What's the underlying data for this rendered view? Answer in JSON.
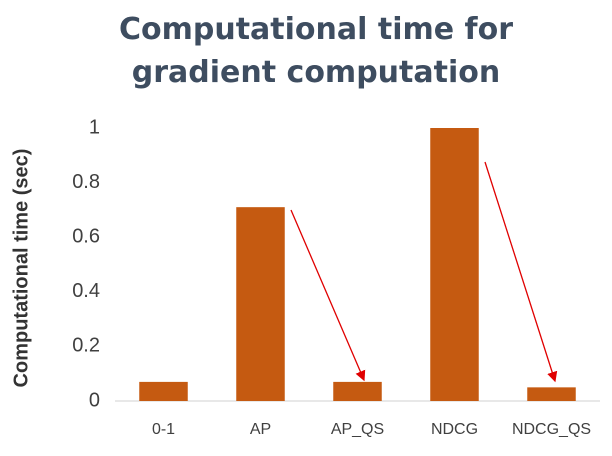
{
  "chart_data": {
    "type": "bar",
    "title": "Computational time for gradient computation",
    "y_label": "Computational time  (sec)",
    "categories": [
      "0-1",
      "AP",
      "AP_QS",
      "NDCG",
      "NDCG_QS"
    ],
    "values": [
      0.07,
      0.71,
      0.07,
      1,
      0.05
    ],
    "color": "#c55a11",
    "ylim": [
      0,
      1
    ],
    "yticks": [
      0,
      0.2,
      0.4,
      0.6,
      0.8,
      1
    ],
    "grid": false
  }
}
